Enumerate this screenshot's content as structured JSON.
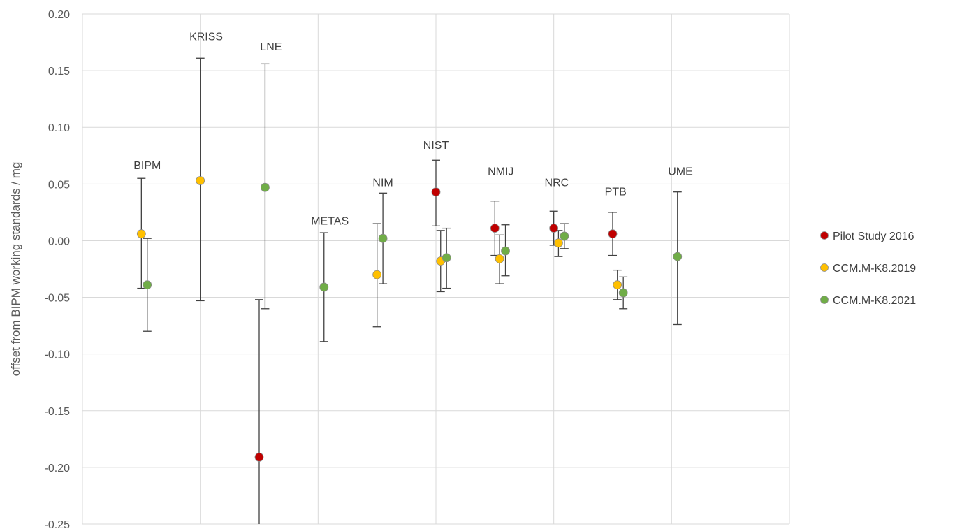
{
  "chart_data": {
    "type": "scatter",
    "ylabel": "offset from BIPM working standards / mg",
    "ylim": [
      -0.25,
      0.2
    ],
    "yticks": [
      0.2,
      0.15,
      0.1,
      0.05,
      0.0,
      -0.05,
      -0.1,
      -0.15,
      -0.2,
      -0.25
    ],
    "ytick_labels": [
      "0.20",
      "0.15",
      "0.10",
      "0.05",
      "0.00",
      "-0.05",
      "-0.10",
      "-0.15",
      "-0.20",
      "-0.25"
    ],
    "xlim": [
      0,
      12
    ],
    "vertical_gridlines_x": [
      2,
      4,
      6,
      8,
      10
    ],
    "grid": true,
    "legend_position": "right",
    "categories": [
      {
        "label": "BIPM",
        "x": 1.1,
        "label_y": 0.063
      },
      {
        "label": "KRISS",
        "x": 2.1,
        "label_y": 0.177
      },
      {
        "label": "LNE",
        "x": 3.2,
        "label_y": 0.168
      },
      {
        "label": "METAS",
        "x": 4.2,
        "label_y": 0.014
      },
      {
        "label": "NIM",
        "x": 5.1,
        "label_y": 0.048
      },
      {
        "label": "NIST",
        "x": 6.0,
        "label_y": 0.081
      },
      {
        "label": "NMIJ",
        "x": 7.1,
        "label_y": 0.058
      },
      {
        "label": "NRC",
        "x": 8.05,
        "label_y": 0.048
      },
      {
        "label": "PTB",
        "x": 9.05,
        "label_y": 0.04
      },
      {
        "label": "UME",
        "x": 10.15,
        "label_y": 0.058
      }
    ],
    "series": [
      {
        "name": "Pilot Study 2016",
        "color": "#c00000",
        "points": [
          {
            "lab": "LNE",
            "x": 3.0,
            "y": -0.191,
            "err_low": -0.252,
            "err_high": -0.052
          },
          {
            "lab": "NIST",
            "x": 6.0,
            "y": 0.043,
            "err_low": 0.013,
            "err_high": 0.071
          },
          {
            "lab": "NMIJ",
            "x": 7.0,
            "y": 0.011,
            "err_low": -0.013,
            "err_high": 0.035
          },
          {
            "lab": "NRC",
            "x": 8.0,
            "y": 0.011,
            "err_low": -0.004,
            "err_high": 0.026
          },
          {
            "lab": "PTB",
            "x": 9.0,
            "y": 0.006,
            "err_low": -0.013,
            "err_high": 0.025
          }
        ]
      },
      {
        "name": "CCM.M-K8.2019",
        "color": "#ffc000",
        "points": [
          {
            "lab": "BIPM",
            "x": 1.0,
            "y": 0.006,
            "err_low": -0.042,
            "err_high": 0.055
          },
          {
            "lab": "KRISS",
            "x": 2.0,
            "y": 0.053,
            "err_low": -0.053,
            "err_high": 0.161
          },
          {
            "lab": "NIM",
            "x": 5.0,
            "y": -0.03,
            "err_low": -0.076,
            "err_high": 0.015
          },
          {
            "lab": "NIST",
            "x": 6.08,
            "y": -0.018,
            "err_low": -0.045,
            "err_high": 0.009
          },
          {
            "lab": "NMIJ",
            "x": 7.08,
            "y": -0.016,
            "err_low": -0.038,
            "err_high": 0.005
          },
          {
            "lab": "NRC",
            "x": 8.08,
            "y": -0.002,
            "err_low": -0.014,
            "err_high": 0.009
          },
          {
            "lab": "PTB",
            "x": 9.08,
            "y": -0.039,
            "err_low": -0.052,
            "err_high": -0.026
          }
        ]
      },
      {
        "name": "CCM.M-K8.2021",
        "color": "#70ad47",
        "points": [
          {
            "lab": "BIPM",
            "x": 1.1,
            "y": -0.039,
            "err_low": -0.08,
            "err_high": 0.002
          },
          {
            "lab": "LNE",
            "x": 3.1,
            "y": 0.047,
            "err_low": -0.06,
            "err_high": 0.156
          },
          {
            "lab": "METAS",
            "x": 4.1,
            "y": -0.041,
            "err_low": -0.089,
            "err_high": 0.007
          },
          {
            "lab": "NIM",
            "x": 5.1,
            "y": 0.002,
            "err_low": -0.038,
            "err_high": 0.042
          },
          {
            "lab": "NIST",
            "x": 6.18,
            "y": -0.015,
            "err_low": -0.042,
            "err_high": 0.011
          },
          {
            "lab": "NMIJ",
            "x": 7.18,
            "y": -0.009,
            "err_low": -0.031,
            "err_high": 0.014
          },
          {
            "lab": "NRC",
            "x": 8.18,
            "y": 0.004,
            "err_low": -0.007,
            "err_high": 0.015
          },
          {
            "lab": "PTB",
            "x": 9.18,
            "y": -0.046,
            "err_low": -0.06,
            "err_high": -0.032
          },
          {
            "lab": "UME",
            "x": 10.1,
            "y": -0.014,
            "err_low": -0.074,
            "err_high": 0.043
          }
        ]
      }
    ]
  }
}
